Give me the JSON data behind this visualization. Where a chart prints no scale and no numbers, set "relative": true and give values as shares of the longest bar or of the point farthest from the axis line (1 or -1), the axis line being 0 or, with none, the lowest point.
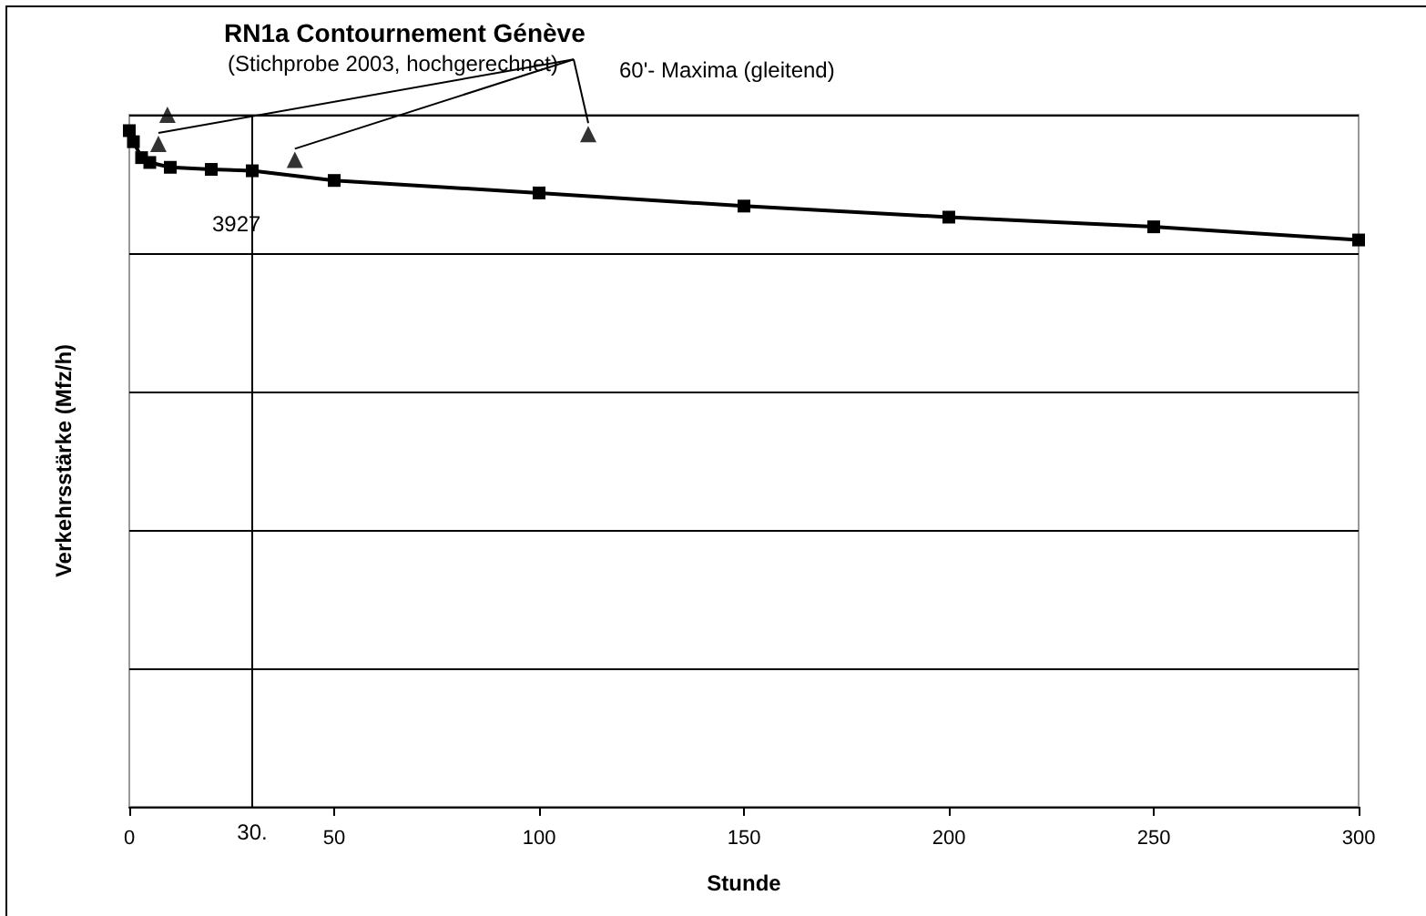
{
  "chart_data": {
    "type": "line",
    "title": "RN1a Contournement Génève",
    "subtitle": "(Stichprobe 2003, hochgerechnet)",
    "xlabel": "Stunde",
    "ylabel": "Verkehrsstärke (Mfz/h)",
    "relative": true,
    "xlim": [
      0,
      300
    ],
    "xticks": [
      0,
      50,
      100,
      150,
      200,
      250,
      300
    ],
    "grid": "y",
    "legend": false,
    "marker": "square",
    "annotations": [
      "3927"
    ],
    "ref_lines": [
      {
        "axis": "x",
        "value": 30,
        "label": "30."
      }
    ],
    "series": [
      {
        "color": "#000000",
        "x": [
          0,
          1,
          3,
          5,
          10,
          20,
          30,
          50,
          100,
          150,
          200,
          250,
          300
        ],
        "values": [
          0.977,
          0.961,
          0.938,
          0.931,
          0.924,
          0.921,
          0.919,
          0.905,
          0.887,
          0.868,
          0.852,
          0.838,
          0.819
        ]
      },
      {
        "type": "scatter",
        "name": "60'- Maxima (gleitend)",
        "color": "#000000",
        "marker": "triangle",
        "x": [
          9.3,
          7.1,
          40.4,
          112
        ],
        "values": [
          1.0,
          0.958,
          0.935,
          0.972
        ]
      }
    ]
  }
}
